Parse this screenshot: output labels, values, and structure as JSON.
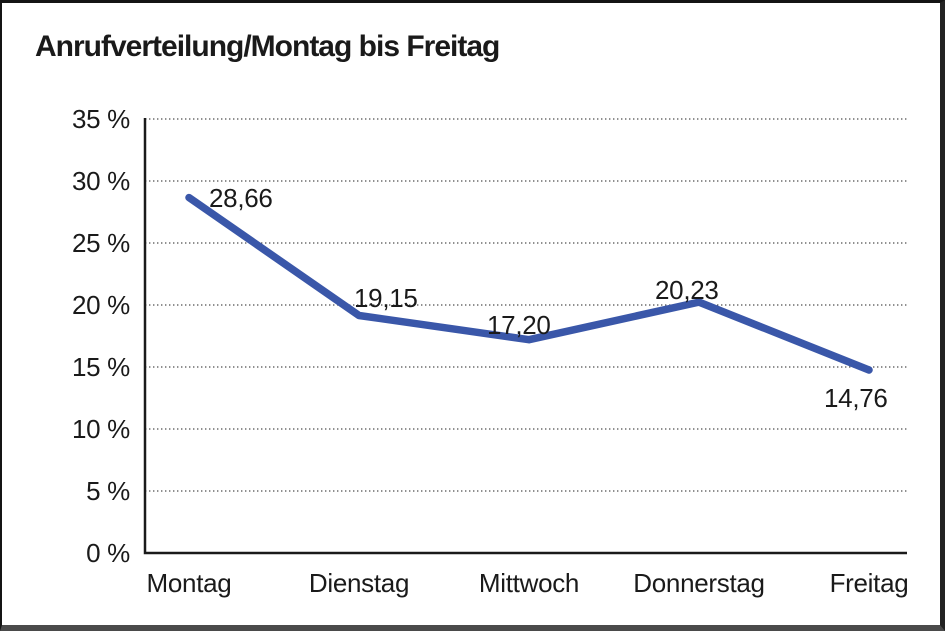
{
  "chart_data": {
    "type": "line",
    "title": "Anrufverteilung/Montag bis Freitag",
    "categories": [
      "Montag",
      "Dienstag",
      "Mittwoch",
      "Donnerstag",
      "Freitag"
    ],
    "values": [
      28.66,
      19.15,
      17.2,
      20.23,
      14.76
    ],
    "value_labels": [
      "28,66",
      "19,15",
      "17,20",
      "20,23",
      "14,76"
    ],
    "y_ticks": [
      {
        "label": "35 %",
        "value": 35
      },
      {
        "label": "30 %",
        "value": 30
      },
      {
        "label": "25 %",
        "value": 25
      },
      {
        "label": "20 %",
        "value": 20
      },
      {
        "label": "15 %",
        "value": 15
      },
      {
        "label": "10 %",
        "value": 10
      },
      {
        "label": "5 %",
        "value": 5
      },
      {
        "label": "0 %",
        "value": 0
      }
    ],
    "ylim": [
      0,
      35
    ],
    "xlabel": "",
    "ylabel": "",
    "grid": "dotted-horizontal",
    "legend": "none",
    "line_color": "#3A57A9",
    "axis_color": "#1A1A1A",
    "grid_color": "#4D4D4D",
    "text_color": "#1A1A1A",
    "background": "#FFFFFF"
  }
}
